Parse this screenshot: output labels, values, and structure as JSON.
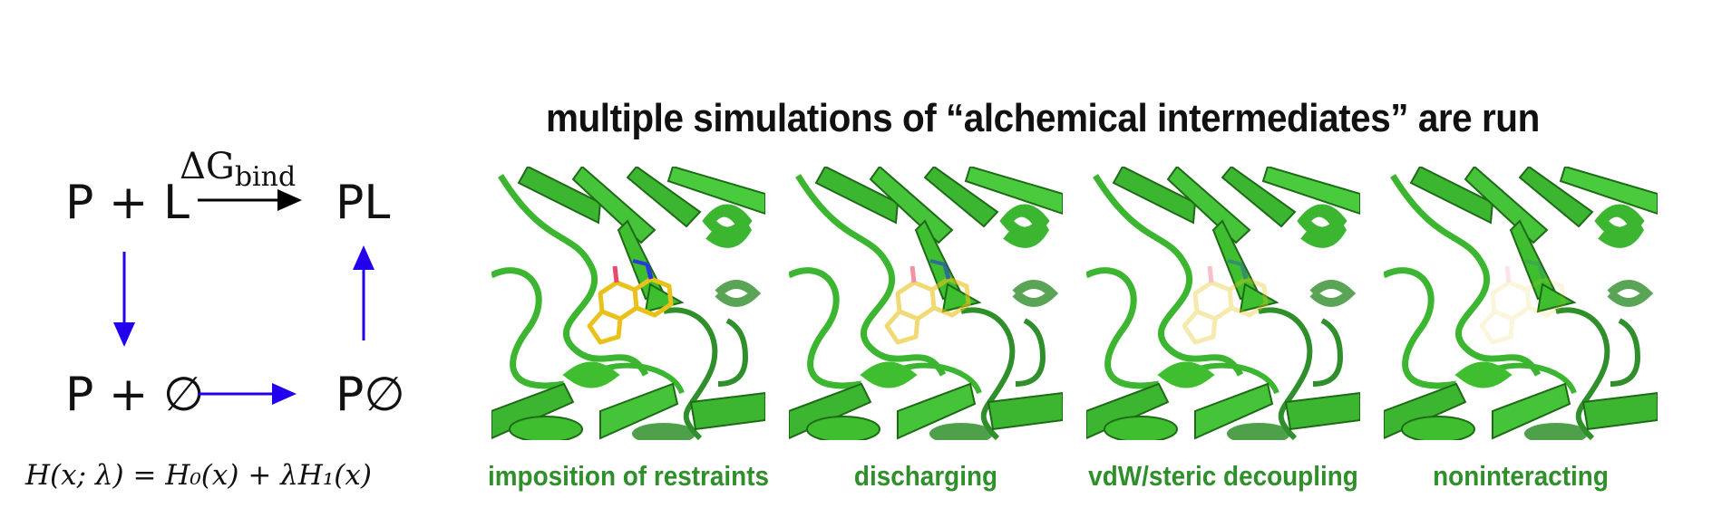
{
  "cycle": {
    "top_left": "P + L",
    "top_right": "PL",
    "bottom_left": "P + ∅",
    "bottom_right": "P∅",
    "delta_g_main": "ΔG",
    "delta_g_sub": "bind",
    "arrow_color_top": "#000000",
    "arrow_color_blue": "#2200ee"
  },
  "equation": "H(x; λ) = H₀(x) + λH₁(x)",
  "simulations": {
    "title": "multiple simulations of “alchemical intermediates” are run",
    "caption_color": "#2f8f2a",
    "protein_color": "#3fbf2f",
    "ligand_color": "#e8c21a",
    "panels": [
      {
        "caption": "imposition of restraints",
        "ligand_opacity": 1.0
      },
      {
        "caption": "discharging",
        "ligand_opacity": 0.6
      },
      {
        "caption": "vdW/steric decoupling",
        "ligand_opacity": 0.35
      },
      {
        "caption": "noninteracting",
        "ligand_opacity": 0.15
      }
    ]
  }
}
